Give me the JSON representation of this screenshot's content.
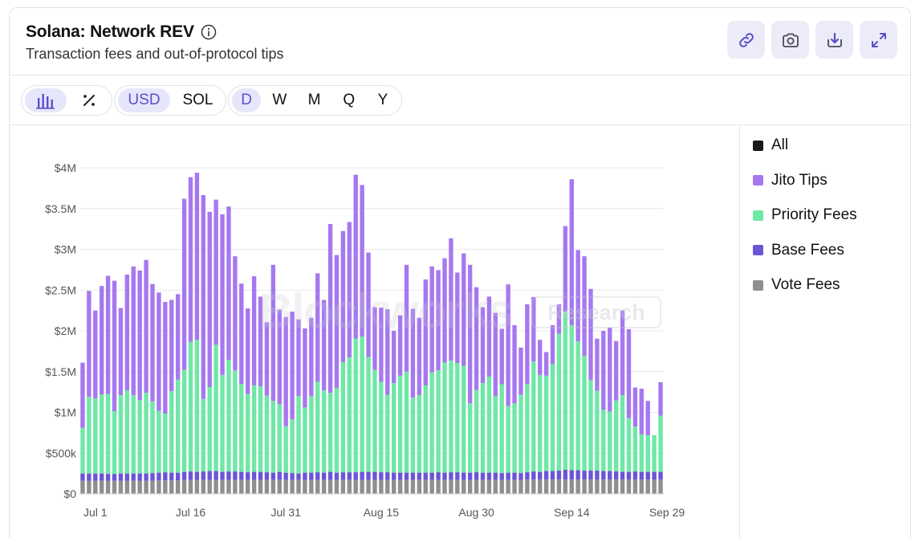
{
  "header": {
    "title": "Solana: Network REV",
    "subtitle": "Transaction fees and out-of-protocol tips"
  },
  "actions": [
    {
      "name": "copy-link-button",
      "icon": "link-icon"
    },
    {
      "name": "screenshot-button",
      "icon": "camera-icon"
    },
    {
      "name": "download-button",
      "icon": "download-icon"
    },
    {
      "name": "expand-button",
      "icon": "expand-icon"
    }
  ],
  "toolbar": {
    "chart_types": [
      {
        "icon": "bar-chart-icon",
        "active": true
      },
      {
        "icon": "percent-icon",
        "active": false
      }
    ],
    "currencies": [
      {
        "label": "USD",
        "active": true
      },
      {
        "label": "SOL",
        "active": false
      }
    ],
    "periods": [
      {
        "label": "D",
        "active": true
      },
      {
        "label": "W",
        "active": false
      },
      {
        "label": "M",
        "active": false
      },
      {
        "label": "Q",
        "active": false
      },
      {
        "label": "Y",
        "active": false
      }
    ]
  },
  "watermark": {
    "brand": "Blockworks",
    "tag": "Research"
  },
  "colors": {
    "jito_tips": "#a678f0",
    "priority_fees": "#6fe8a6",
    "base_fees": "#6b55d6",
    "vote_fees": "#8f8f8f",
    "all": "#1a1a1a",
    "accent": "#5b4fc8"
  },
  "chart_data": {
    "type": "bar",
    "stacked": true,
    "x_start": "2024-06-29",
    "x_ticks": [
      "Jul 1",
      "Jul 16",
      "Jul 31",
      "Aug 15",
      "Aug 30",
      "Sep 14",
      "Sep 29"
    ],
    "y_ticks": [
      "$0",
      "$500k",
      "$1M",
      "$1.5M",
      "$2M",
      "$2.5M",
      "$3M",
      "$3.5M",
      "$4M"
    ],
    "ylim": [
      0,
      4000000
    ],
    "legend": [
      "All",
      "Jito Tips",
      "Priority Fees",
      "Base Fees",
      "Vote Fees"
    ],
    "legend_position": "right",
    "grid": true,
    "series": [
      {
        "name": "Vote Fees",
        "values": [
          160000,
          160000,
          160000,
          160000,
          160000,
          160000,
          160000,
          160000,
          160000,
          160000,
          160000,
          160000,
          165000,
          165000,
          165000,
          165000,
          170000,
          170000,
          170000,
          170000,
          170000,
          170000,
          170000,
          170000,
          170000,
          170000,
          170000,
          170000,
          170000,
          170000,
          170000,
          170000,
          170000,
          170000,
          170000,
          170000,
          170000,
          170000,
          170000,
          170000,
          170000,
          170000,
          170000,
          170000,
          170000,
          170000,
          170000,
          170000,
          170000,
          170000,
          170000,
          170000,
          170000,
          170000,
          170000,
          170000,
          170000,
          170000,
          170000,
          170000,
          170000,
          170000,
          170000,
          170000,
          170000,
          170000,
          170000,
          170000,
          170000,
          170000,
          175000,
          175000,
          175000,
          175000,
          175000,
          175000,
          175000,
          175000,
          175000,
          175000,
          175000,
          175000,
          175000,
          175000,
          175000,
          175000,
          175000,
          175000,
          175000,
          175000,
          175000,
          175000
        ]
      },
      {
        "name": "Base Fees",
        "values": [
          90000,
          90000,
          90000,
          90000,
          85000,
          85000,
          90000,
          90000,
          90000,
          90000,
          90000,
          95000,
          95000,
          100000,
          95000,
          95000,
          100000,
          105000,
          100000,
          105000,
          110000,
          110000,
          100000,
          105000,
          105000,
          100000,
          95000,
          100000,
          100000,
          95000,
          90000,
          100000,
          90000,
          85000,
          80000,
          90000,
          90000,
          95000,
          90000,
          100000,
          90000,
          95000,
          95000,
          95000,
          100000,
          100000,
          100000,
          95000,
          95000,
          90000,
          90000,
          90000,
          90000,
          90000,
          90000,
          90000,
          95000,
          90000,
          95000,
          95000,
          90000,
          90000,
          95000,
          90000,
          90000,
          90000,
          85000,
          90000,
          90000,
          85000,
          90000,
          100000,
          95000,
          105000,
          105000,
          110000,
          120000,
          115000,
          115000,
          110000,
          110000,
          110000,
          105000,
          105000,
          100000,
          95000,
          95000,
          100000,
          95000,
          95000,
          95000,
          95000
        ]
      },
      {
        "name": "Priority Fees",
        "values": [
          560000,
          940000,
          920000,
          970000,
          980000,
          770000,
          960000,
          1020000,
          960000,
          900000,
          990000,
          880000,
          760000,
          720000,
          1000000,
          1140000,
          1250000,
          1590000,
          1620000,
          890000,
          1030000,
          1550000,
          1190000,
          1370000,
          1240000,
          1080000,
          960000,
          1060000,
          1050000,
          940000,
          880000,
          830000,
          570000,
          660000,
          950000,
          800000,
          940000,
          1110000,
          1010000,
          970000,
          1040000,
          1350000,
          1410000,
          1640000,
          1660000,
          1410000,
          1250000,
          1110000,
          950000,
          1100000,
          1190000,
          1240000,
          920000,
          950000,
          1070000,
          1230000,
          1250000,
          1350000,
          1370000,
          1340000,
          1310000,
          850000,
          1010000,
          1100000,
          1180000,
          940000,
          1090000,
          820000,
          850000,
          960000,
          1080000,
          1350000,
          1190000,
          1170000,
          1310000,
          1680000,
          1940000,
          1780000,
          1580000,
          1410000,
          1110000,
          980000,
          750000,
          730000,
          870000,
          940000,
          660000,
          550000,
          460000,
          450000,
          450000,
          690000
        ]
      },
      {
        "name": "Jito Tips",
        "values": [
          800000,
          1300000,
          1080000,
          1330000,
          1450000,
          1600000,
          1070000,
          1420000,
          1580000,
          1590000,
          1630000,
          1440000,
          1450000,
          1370000,
          1120000,
          1050000,
          2100000,
          2020000,
          2050000,
          2500000,
          2150000,
          1780000,
          1970000,
          1880000,
          1400000,
          1230000,
          1050000,
          1340000,
          1100000,
          900000,
          1670000,
          1160000,
          1340000,
          1320000,
          940000,
          970000,
          960000,
          1330000,
          1110000,
          2070000,
          1630000,
          1610000,
          1660000,
          2010000,
          1860000,
          1280000,
          770000,
          910000,
          1050000,
          640000,
          740000,
          1310000,
          1090000,
          950000,
          1300000,
          1300000,
          1230000,
          1280000,
          1500000,
          1110000,
          1380000,
          1700000,
          1260000,
          930000,
          980000,
          1020000,
          680000,
          1490000,
          960000,
          580000,
          980000,
          790000,
          430000,
          290000,
          480000,
          360000,
          1050000,
          1790000,
          1120000,
          1220000,
          1120000,
          640000,
          970000,
          1030000,
          730000,
          1040000,
          1090000,
          480000,
          560000,
          420000,
          0,
          410000
        ]
      }
    ]
  }
}
